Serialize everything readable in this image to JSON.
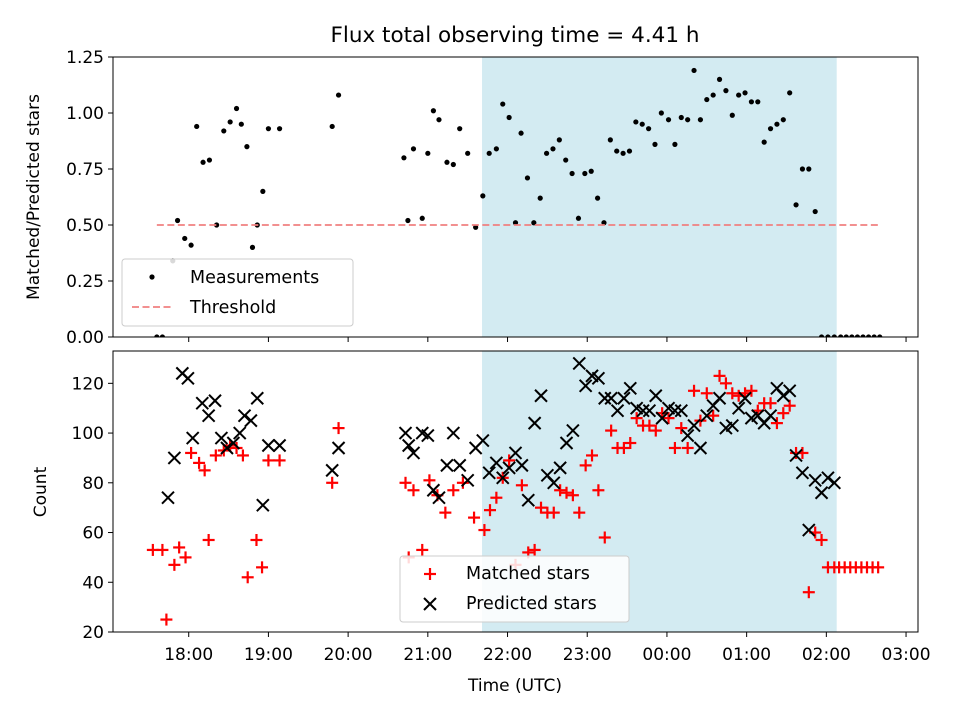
{
  "chart_data": [
    {
      "type": "scatter",
      "title": "Flux total observing time = 4.41 h",
      "xlabel": "",
      "ylabel": "Matched/Predicted stars",
      "ylim": [
        0,
        1.25
      ],
      "yticks": [
        "0.00",
        "0.25",
        "0.50",
        "0.75",
        "1.00",
        "1.25"
      ],
      "xlim_hours": [
        17.05,
        27.15
      ],
      "xticks_hours": [
        18,
        19,
        20,
        21,
        22,
        23,
        24,
        25,
        26,
        27
      ],
      "highlight_span_hours": [
        21.68,
        26.13
      ],
      "highlight_color": "#d3ebf2",
      "threshold": {
        "name": "Threshold",
        "value": 0.5,
        "x_start_hours": 17.6,
        "x_end_hours": 26.68,
        "color": "#f08080"
      },
      "legend": [
        "Measurements",
        "Threshold"
      ],
      "legend_position": "lower-left",
      "series": [
        {
          "name": "Measurements",
          "color": "#000000",
          "x_hours": [
            17.6,
            17.67,
            17.8,
            17.86,
            17.95,
            18.03,
            18.1,
            18.18,
            18.26,
            18.35,
            18.44,
            18.52,
            18.6,
            18.66,
            18.73,
            18.8,
            18.86,
            18.93,
            19.0,
            19.14,
            19.8,
            19.88,
            20.7,
            20.75,
            20.82,
            20.93,
            21.0,
            21.07,
            21.14,
            21.24,
            21.32,
            21.4,
            21.5,
            21.6,
            21.69,
            21.77,
            21.86,
            21.94,
            22.02,
            22.1,
            22.17,
            22.25,
            22.33,
            22.41,
            22.49,
            22.57,
            22.65,
            22.73,
            22.81,
            22.89,
            22.97,
            23.05,
            23.13,
            23.21,
            23.29,
            23.37,
            23.45,
            23.53,
            23.61,
            23.69,
            23.77,
            23.85,
            23.93,
            24.02,
            24.1,
            24.18,
            24.26,
            24.34,
            24.42,
            24.5,
            24.58,
            24.66,
            24.74,
            24.82,
            24.9,
            24.98,
            25.06,
            25.14,
            25.22,
            25.3,
            25.38,
            25.46,
            25.54,
            25.62,
            25.7,
            25.78,
            25.86,
            25.94,
            26.02,
            26.1,
            26.18,
            26.25,
            26.32,
            26.39,
            26.46,
            26.53,
            26.6,
            26.67
          ],
          "y": [
            0.0,
            0.0,
            0.34,
            0.52,
            0.44,
            0.41,
            0.94,
            0.78,
            0.79,
            0.5,
            0.92,
            0.96,
            1.02,
            0.95,
            0.85,
            0.4,
            0.5,
            0.65,
            0.93,
            0.93,
            0.94,
            1.08,
            0.8,
            0.52,
            0.84,
            0.53,
            0.82,
            1.01,
            0.97,
            0.78,
            0.77,
            0.93,
            0.82,
            0.49,
            0.63,
            0.82,
            0.84,
            1.04,
            0.98,
            0.51,
            0.91,
            0.71,
            0.51,
            0.62,
            0.82,
            0.84,
            0.88,
            0.79,
            0.73,
            0.53,
            0.73,
            0.74,
            0.62,
            0.51,
            0.88,
            0.83,
            0.82,
            0.83,
            0.96,
            0.95,
            0.93,
            0.86,
            1.0,
            0.97,
            0.86,
            0.98,
            0.97,
            1.19,
            0.97,
            1.06,
            1.08,
            1.15,
            1.1,
            0.99,
            1.08,
            1.09,
            1.05,
            1.05,
            0.87,
            0.93,
            0.95,
            0.97,
            1.09,
            0.59,
            0.75,
            0.75,
            0.56,
            0.0,
            0.0,
            0.0,
            0.0,
            0.0,
            0.0,
            0.0,
            0.0,
            0.0,
            0.0,
            0.0
          ]
        }
      ]
    },
    {
      "type": "scatter",
      "title": "",
      "xlabel": "Time (UTC)",
      "ylabel": "Count",
      "ylim": [
        20,
        133
      ],
      "yticks": [
        "20",
        "40",
        "60",
        "80",
        "100",
        "120"
      ],
      "xlim_hours": [
        17.05,
        27.15
      ],
      "xticks_hours": [
        18,
        19,
        20,
        21,
        22,
        23,
        24,
        25,
        26,
        27
      ],
      "xtick_labels": [
        "18:00",
        "19:00",
        "20:00",
        "21:00",
        "22:00",
        "23:00",
        "00:00",
        "01:00",
        "02:00",
        "03:00"
      ],
      "highlight_span_hours": [
        21.68,
        26.13
      ],
      "highlight_color": "#d3ebf2",
      "legend": [
        "Matched stars",
        "Predicted stars"
      ],
      "legend_position": "lower-center",
      "series": [
        {
          "name": "Matched stars",
          "marker": "+",
          "color": "#ff0000",
          "x_hours": [
            17.55,
            17.67,
            17.72,
            17.82,
            17.88,
            17.96,
            18.03,
            18.13,
            18.2,
            18.25,
            18.34,
            18.44,
            18.52,
            18.6,
            18.68,
            18.74,
            18.85,
            18.92,
            19.0,
            19.14,
            19.8,
            19.88,
            20.72,
            20.76,
            20.82,
            20.93,
            21.02,
            21.12,
            21.22,
            21.32,
            21.44,
            21.58,
            21.71,
            21.78,
            21.86,
            21.94,
            22.02,
            22.1,
            22.18,
            22.26,
            22.34,
            22.42,
            22.5,
            22.58,
            22.66,
            22.74,
            22.82,
            22.9,
            22.98,
            23.06,
            23.14,
            23.22,
            23.3,
            23.38,
            23.46,
            23.54,
            23.62,
            23.7,
            23.78,
            23.86,
            23.94,
            24.02,
            24.1,
            24.18,
            24.26,
            24.34,
            24.42,
            24.5,
            24.58,
            24.66,
            24.74,
            24.82,
            24.9,
            24.98,
            25.06,
            25.14,
            25.22,
            25.3,
            25.38,
            25.46,
            25.54,
            25.62,
            25.7,
            25.78,
            25.86,
            25.94,
            26.02,
            26.1,
            26.16,
            26.23,
            26.3,
            26.37,
            26.44,
            26.51,
            26.58,
            26.65
          ],
          "y": [
            53,
            53,
            25,
            47,
            54,
            50,
            92,
            88,
            85,
            57,
            91,
            93,
            95,
            94,
            91,
            42,
            57,
            46,
            89,
            89,
            80,
            102,
            80,
            50,
            77,
            53,
            81,
            75,
            68,
            77,
            80,
            66,
            61,
            69,
            74,
            82,
            89,
            47,
            79,
            52,
            53,
            70,
            68,
            68,
            77,
            76,
            75,
            68,
            87,
            91,
            77,
            58,
            101,
            94,
            94,
            96,
            106,
            103,
            103,
            101,
            108,
            106,
            94,
            102,
            94,
            117,
            105,
            116,
            107,
            123,
            120,
            116,
            115,
            116,
            117,
            109,
            112,
            112,
            104,
            108,
            111,
            92,
            92,
            36,
            60,
            57,
            46,
            46,
            46,
            46,
            46,
            46,
            46,
            46,
            46,
            46
          ]
        },
        {
          "name": "Predicted stars",
          "marker": "x",
          "color": "#000000",
          "x_hours": [
            17.74,
            17.82,
            17.92,
            17.99,
            18.05,
            18.17,
            18.25,
            18.33,
            18.41,
            18.48,
            18.56,
            18.64,
            18.7,
            18.78,
            18.86,
            18.93,
            19.0,
            19.14,
            19.8,
            19.88,
            20.72,
            20.76,
            20.82,
            20.93,
            21.0,
            21.07,
            21.14,
            21.24,
            21.32,
            21.4,
            21.5,
            21.6,
            21.69,
            21.77,
            21.86,
            21.94,
            22.02,
            22.1,
            22.18,
            22.26,
            22.34,
            22.42,
            22.5,
            22.58,
            22.66,
            22.74,
            22.82,
            22.9,
            22.98,
            23.06,
            23.14,
            23.22,
            23.3,
            23.38,
            23.46,
            23.54,
            23.62,
            23.7,
            23.78,
            23.86,
            23.94,
            24.02,
            24.1,
            24.18,
            24.26,
            24.34,
            24.42,
            24.5,
            24.58,
            24.66,
            24.74,
            24.82,
            24.9,
            24.98,
            25.06,
            25.14,
            25.22,
            25.3,
            25.38,
            25.46,
            25.54,
            25.62,
            25.7,
            25.78,
            25.86,
            25.94,
            26.02,
            26.1
          ],
          "y": [
            74,
            90,
            124,
            122,
            98,
            112,
            107,
            113,
            98,
            94,
            96,
            100,
            107,
            105,
            114,
            71,
            95,
            95,
            85,
            94,
            100,
            95,
            92,
            100,
            99,
            77,
            74,
            87,
            100,
            87,
            81,
            94,
            97,
            84,
            88,
            82,
            86,
            92,
            87,
            73,
            104,
            115,
            83,
            80,
            86,
            96,
            101,
            128,
            119,
            123,
            122,
            114,
            114,
            109,
            114,
            118,
            110,
            109,
            109,
            115,
            106,
            110,
            109,
            109,
            99,
            103,
            94,
            107,
            111,
            114,
            102,
            103,
            110,
            114,
            106,
            107,
            104,
            107,
            118,
            115,
            117,
            91,
            84,
            61,
            81,
            76,
            82,
            80
          ]
        }
      ]
    }
  ]
}
